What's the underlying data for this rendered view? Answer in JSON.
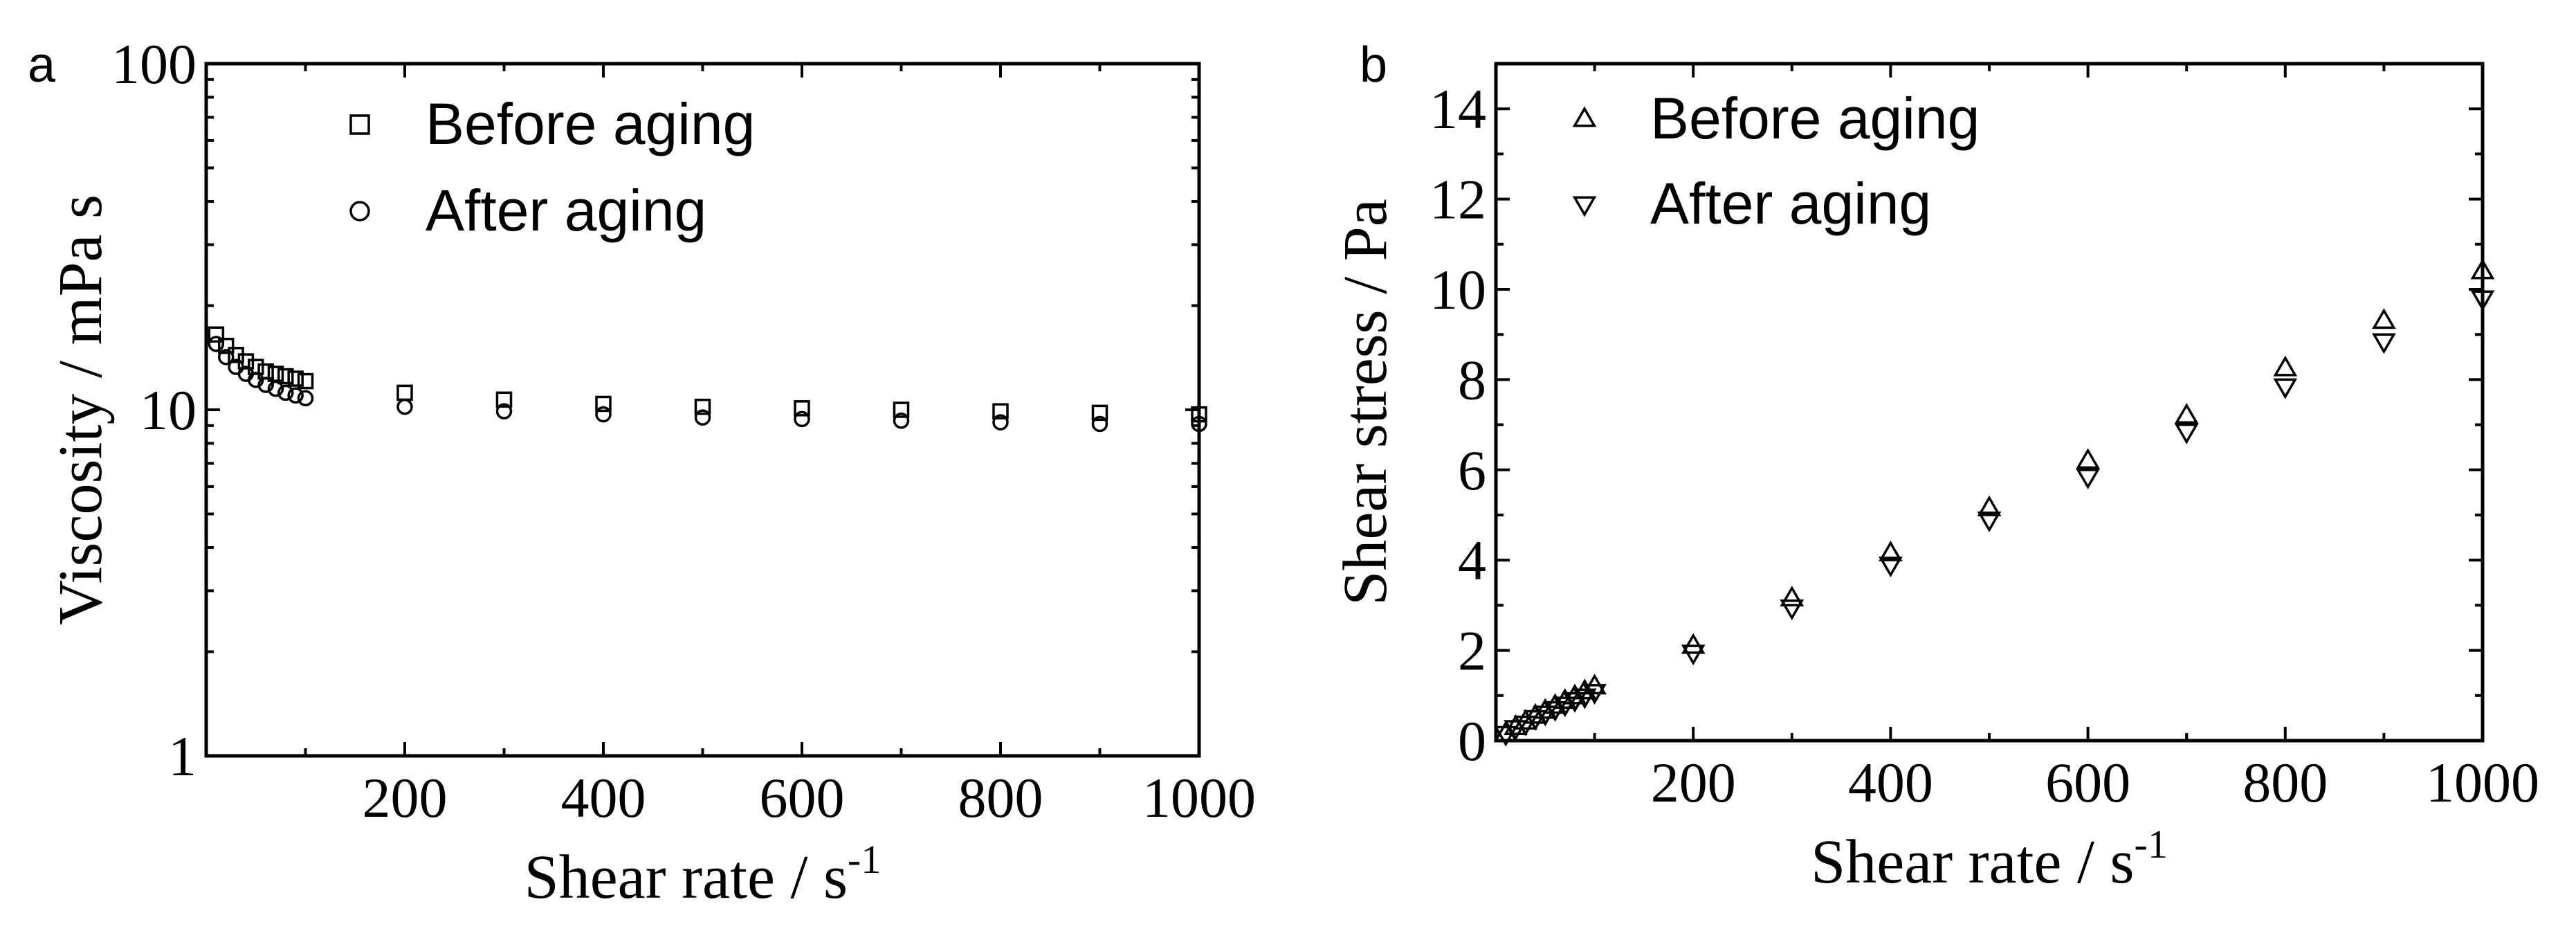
{
  "chart_data": [
    {
      "panel_label": "a",
      "type": "scatter",
      "xlabel": "Shear rate / s",
      "xlabel_sup": "-1",
      "ylabel": "Viscosity / mPa s",
      "xlim": [
        0,
        1000
      ],
      "ylim": [
        1,
        100
      ],
      "yscale": "log",
      "x_ticks": [
        200,
        400,
        600,
        800,
        1000
      ],
      "y_ticks": [
        1,
        10,
        100
      ],
      "legend_position": "top-left",
      "series": [
        {
          "name": "Before aging",
          "marker": "square",
          "points": [
            [
              10,
              16.5
            ],
            [
              20,
              15.3
            ],
            [
              30,
              14.4
            ],
            [
              40,
              13.8
            ],
            [
              50,
              13.3
            ],
            [
              60,
              12.9
            ],
            [
              70,
              12.7
            ],
            [
              80,
              12.5
            ],
            [
              90,
              12.3
            ],
            [
              100,
              12.1
            ],
            [
              200,
              11.2
            ],
            [
              300,
              10.7
            ],
            [
              400,
              10.4
            ],
            [
              500,
              10.2
            ],
            [
              600,
              10.1
            ],
            [
              700,
              10.0
            ],
            [
              800,
              9.9
            ],
            [
              900,
              9.8
            ],
            [
              1000,
              9.7
            ]
          ]
        },
        {
          "name": "After aging",
          "marker": "circle",
          "points": [
            [
              10,
              15.5
            ],
            [
              20,
              14.2
            ],
            [
              30,
              13.3
            ],
            [
              40,
              12.7
            ],
            [
              50,
              12.2
            ],
            [
              60,
              11.8
            ],
            [
              70,
              11.5
            ],
            [
              80,
              11.2
            ],
            [
              90,
              11.0
            ],
            [
              100,
              10.8
            ],
            [
              200,
              10.2
            ],
            [
              300,
              9.9
            ],
            [
              400,
              9.7
            ],
            [
              500,
              9.5
            ],
            [
              600,
              9.4
            ],
            [
              700,
              9.3
            ],
            [
              800,
              9.2
            ],
            [
              900,
              9.1
            ],
            [
              1000,
              9.1
            ]
          ]
        }
      ]
    },
    {
      "panel_label": "b",
      "type": "scatter",
      "xlabel": "Shear rate / s",
      "xlabel_sup": "-1",
      "ylabel": "Shear stress / Pa",
      "xlim": [
        0,
        1000
      ],
      "ylim": [
        0,
        15
      ],
      "x_ticks": [
        200,
        400,
        600,
        800,
        1000
      ],
      "y_ticks": [
        0,
        2,
        4,
        6,
        8,
        10,
        12,
        14
      ],
      "legend_position": "top-left",
      "series": [
        {
          "name": "Before aging",
          "marker": "triangle-up",
          "points": [
            [
              10,
              0.16
            ],
            [
              20,
              0.3
            ],
            [
              30,
              0.42
            ],
            [
              40,
              0.55
            ],
            [
              50,
              0.66
            ],
            [
              60,
              0.77
            ],
            [
              70,
              0.88
            ],
            [
              80,
              0.98
            ],
            [
              90,
              1.09
            ],
            [
              100,
              1.2
            ],
            [
              200,
              2.1
            ],
            [
              300,
              3.15
            ],
            [
              400,
              4.15
            ],
            [
              500,
              5.15
            ],
            [
              600,
              6.2
            ],
            [
              700,
              7.2
            ],
            [
              800,
              8.25
            ],
            [
              900,
              9.3
            ],
            [
              1000,
              10.4
            ]
          ]
        },
        {
          "name": "After aging",
          "marker": "triangle-down",
          "points": [
            [
              10,
              0.15
            ],
            [
              20,
              0.28
            ],
            [
              30,
              0.38
            ],
            [
              40,
              0.5
            ],
            [
              50,
              0.6
            ],
            [
              60,
              0.7
            ],
            [
              70,
              0.8
            ],
            [
              80,
              0.9
            ],
            [
              90,
              0.98
            ],
            [
              100,
              1.08
            ],
            [
              200,
              1.95
            ],
            [
              300,
              2.95
            ],
            [
              400,
              3.9
            ],
            [
              500,
              4.9
            ],
            [
              600,
              5.85
            ],
            [
              700,
              6.85
            ],
            [
              800,
              7.85
            ],
            [
              900,
              8.85
            ],
            [
              1000,
              9.8
            ]
          ]
        }
      ]
    }
  ]
}
